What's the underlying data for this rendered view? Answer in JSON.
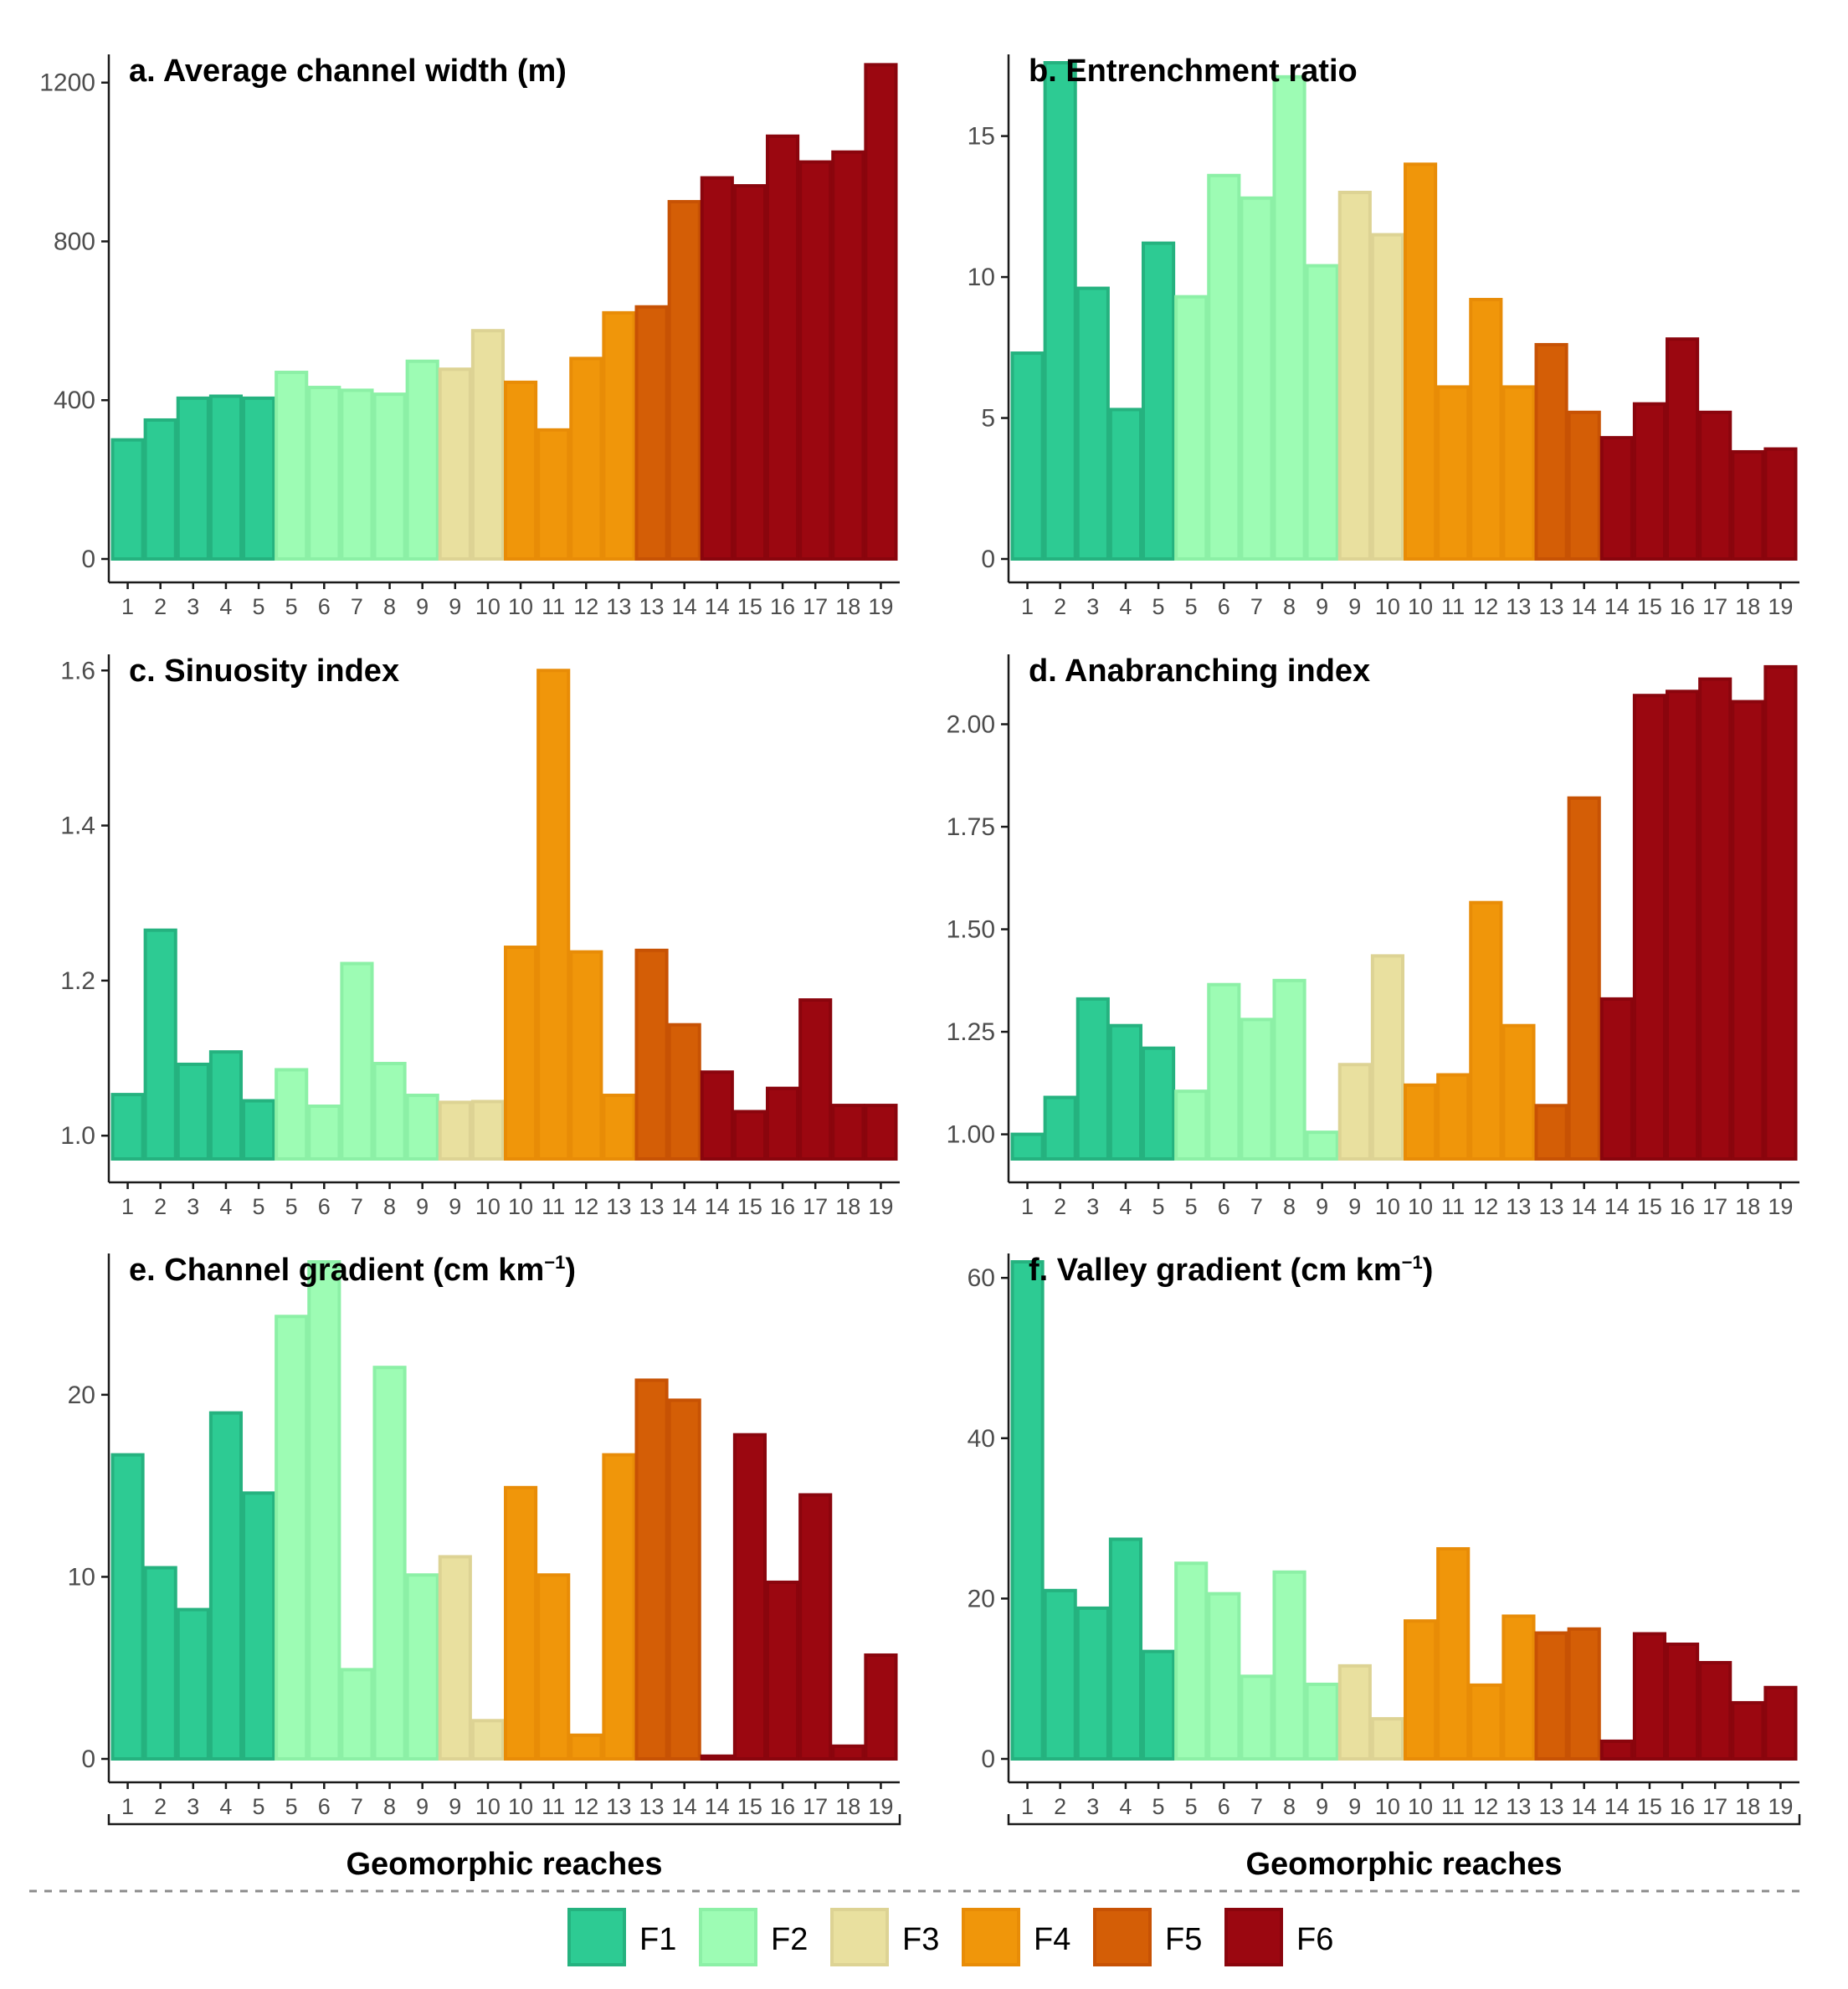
{
  "figure": {
    "xlabel": "Geomorphic reaches"
  },
  "legend": {
    "items": [
      {
        "label": "F1",
        "fill": "#2dcb93",
        "stroke": "#25b27f"
      },
      {
        "label": "F2",
        "fill": "#9dfcb4",
        "stroke": "#8cf0a6"
      },
      {
        "label": "F3",
        "fill": "#e9e09f",
        "stroke": "#ddd394"
      },
      {
        "label": "F4",
        "fill": "#f0960a",
        "stroke": "#e88c07"
      },
      {
        "label": "F5",
        "fill": "#d45e06",
        "stroke": "#c75204"
      },
      {
        "label": "F6",
        "fill": "#9b0710",
        "stroke": "#8a050d"
      }
    ]
  },
  "chart_data": [
    {
      "type": "bar",
      "title": "a. Average channel width (m)",
      "ylim": [
        0,
        1250
      ],
      "yticks": [
        0,
        400,
        800,
        1200
      ],
      "categories": [
        "1",
        "2",
        "3",
        "4",
        "5",
        "5",
        "6",
        "7",
        "8",
        "9",
        "9",
        "10",
        "10",
        "11",
        "12",
        "13",
        "13",
        "14",
        "14",
        "15",
        "16",
        "17",
        "18",
        "19"
      ],
      "groups": [
        "F1",
        "F1",
        "F1",
        "F1",
        "F1",
        "F2",
        "F2",
        "F2",
        "F2",
        "F2",
        "F3",
        "F3",
        "F4",
        "F4",
        "F4",
        "F4",
        "F5",
        "F5",
        "F6",
        "F6",
        "F6",
        "F6",
        "F6",
        "F6"
      ],
      "values": [
        300,
        350,
        405,
        410,
        405,
        470,
        432,
        425,
        415,
        498,
        478,
        575,
        445,
        325,
        505,
        620,
        635,
        900,
        960,
        940,
        1065,
        1000,
        1025,
        1245
      ]
    },
    {
      "type": "bar",
      "title": "b. Entrenchment ratio",
      "ylim": [
        0,
        17.6
      ],
      "yticks": [
        0,
        5,
        10,
        15
      ],
      "categories": [
        "1",
        "2",
        "3",
        "4",
        "5",
        "5",
        "6",
        "7",
        "8",
        "9",
        "9",
        "10",
        "10",
        "11",
        "12",
        "13",
        "13",
        "14",
        "14",
        "15",
        "16",
        "17",
        "18",
        "19"
      ],
      "groups": [
        "F1",
        "F1",
        "F1",
        "F1",
        "F1",
        "F2",
        "F2",
        "F2",
        "F2",
        "F2",
        "F3",
        "F3",
        "F4",
        "F4",
        "F4",
        "F4",
        "F5",
        "F5",
        "F6",
        "F6",
        "F6",
        "F6",
        "F6",
        "F6"
      ],
      "values": [
        7.3,
        17.6,
        9.6,
        5.3,
        11.2,
        9.3,
        13.6,
        12.8,
        17.1,
        10.4,
        13.0,
        11.5,
        14.0,
        6.1,
        9.2,
        6.1,
        7.6,
        5.2,
        4.3,
        5.5,
        7.8,
        5.2,
        3.8,
        3.9
      ]
    },
    {
      "type": "bar",
      "title": "c. Sinuosity index",
      "ylim": [
        0.97,
        1.61
      ],
      "ybase": 0.97,
      "yticks": [
        1.0,
        1.2,
        1.4,
        1.6
      ],
      "ytick_labels": [
        "1.0",
        "1.2",
        "1.4",
        "1.6"
      ],
      "categories": [
        "1",
        "2",
        "3",
        "4",
        "5",
        "5",
        "6",
        "7",
        "8",
        "9",
        "9",
        "10",
        "10",
        "11",
        "12",
        "13",
        "13",
        "14",
        "14",
        "15",
        "16",
        "17",
        "18",
        "19"
      ],
      "groups": [
        "F1",
        "F1",
        "F1",
        "F1",
        "F1",
        "F2",
        "F2",
        "F2",
        "F2",
        "F2",
        "F3",
        "F3",
        "F4",
        "F4",
        "F4",
        "F4",
        "F5",
        "F5",
        "F6",
        "F6",
        "F6",
        "F6",
        "F6",
        "F6"
      ],
      "values": [
        1.053,
        1.265,
        1.092,
        1.108,
        1.045,
        1.085,
        1.038,
        1.222,
        1.093,
        1.052,
        1.043,
        1.044,
        1.243,
        1.6,
        1.237,
        1.052,
        1.239,
        1.143,
        1.082,
        1.031,
        1.061,
        1.175,
        1.039,
        1.039
      ]
    },
    {
      "type": "bar",
      "title": "d. Anabranching index",
      "ylim": [
        0.94,
        2.15
      ],
      "ybase": 0.94,
      "yticks": [
        1.0,
        1.25,
        1.5,
        1.75,
        2.0
      ],
      "ytick_labels": [
        "1.00",
        "1.25",
        "1.50",
        "1.75",
        "2.00"
      ],
      "categories": [
        "1",
        "2",
        "3",
        "4",
        "5",
        "5",
        "6",
        "7",
        "8",
        "9",
        "9",
        "10",
        "10",
        "11",
        "12",
        "13",
        "13",
        "14",
        "14",
        "15",
        "16",
        "17",
        "18",
        "19"
      ],
      "groups": [
        "F1",
        "F1",
        "F1",
        "F1",
        "F1",
        "F2",
        "F2",
        "F2",
        "F2",
        "F2",
        "F3",
        "F3",
        "F4",
        "F4",
        "F4",
        "F4",
        "F5",
        "F5",
        "F6",
        "F6",
        "F6",
        "F6",
        "F6",
        "F6"
      ],
      "values": [
        1.0,
        1.09,
        1.33,
        1.265,
        1.21,
        1.105,
        1.365,
        1.28,
        1.375,
        1.005,
        1.17,
        1.435,
        1.12,
        1.145,
        1.565,
        1.265,
        1.07,
        1.82,
        1.33,
        2.07,
        2.08,
        2.11,
        2.055,
        2.14
      ]
    },
    {
      "type": "bar",
      "title": "e. Channel gradient (cm km",
      "title_sup": "−1",
      "title_end": ")",
      "ylim": [
        0,
        27.3
      ],
      "yticks": [
        0,
        10,
        20
      ],
      "categories": [
        "1",
        "2",
        "3",
        "4",
        "5",
        "5",
        "6",
        "7",
        "8",
        "9",
        "9",
        "10",
        "10",
        "11",
        "12",
        "13",
        "13",
        "14",
        "14",
        "15",
        "16",
        "17",
        "18",
        "19"
      ],
      "groups": [
        "F1",
        "F1",
        "F1",
        "F1",
        "F1",
        "F2",
        "F2",
        "F2",
        "F2",
        "F2",
        "F3",
        "F3",
        "F4",
        "F4",
        "F4",
        "F4",
        "F5",
        "F5",
        "F6",
        "F6",
        "F6",
        "F6",
        "F6",
        "F6"
      ],
      "values": [
        16.7,
        10.5,
        8.2,
        19.0,
        14.6,
        24.3,
        27.3,
        4.9,
        21.5,
        10.1,
        11.1,
        2.1,
        14.9,
        10.1,
        1.3,
        16.7,
        20.8,
        19.7,
        0.15,
        17.8,
        9.7,
        14.5,
        0.7,
        5.7
      ]
    },
    {
      "type": "bar",
      "title": "f. Valley gradient (cm km",
      "title_sup": "−1",
      "title_end": ")",
      "ylim": [
        0,
        62
      ],
      "yticks": [
        0,
        20,
        40,
        60
      ],
      "categories": [
        "1",
        "2",
        "3",
        "4",
        "5",
        "5",
        "6",
        "7",
        "8",
        "9",
        "9",
        "10",
        "10",
        "11",
        "12",
        "13",
        "13",
        "14",
        "14",
        "15",
        "16",
        "17",
        "18",
        "19"
      ],
      "groups": [
        "F1",
        "F1",
        "F1",
        "F1",
        "F1",
        "F2",
        "F2",
        "F2",
        "F2",
        "F2",
        "F3",
        "F3",
        "F4",
        "F4",
        "F4",
        "F4",
        "F5",
        "F5",
        "F6",
        "F6",
        "F6",
        "F6",
        "F6",
        "F6"
      ],
      "values": [
        62.0,
        21.0,
        18.8,
        27.4,
        13.4,
        24.4,
        20.6,
        10.3,
        23.3,
        9.3,
        11.6,
        5.0,
        17.2,
        26.2,
        9.2,
        17.8,
        15.7,
        16.2,
        2.2,
        15.6,
        14.3,
        12.0,
        7.0,
        8.9
      ]
    }
  ]
}
